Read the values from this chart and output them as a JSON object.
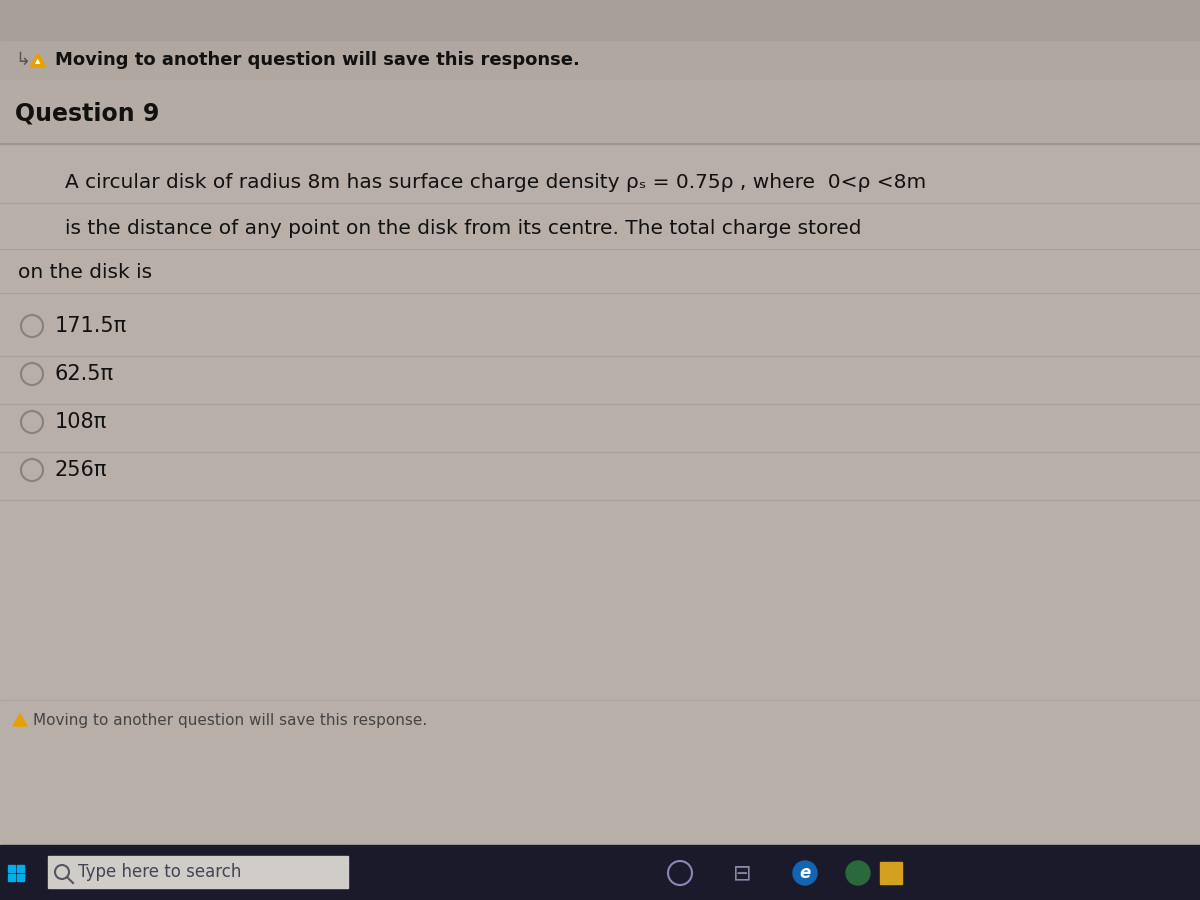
{
  "bg_color": "#b8b0a8",
  "top_area_color": "#b0a8a0",
  "body_color": "#b8b0a8",
  "taskbar_bg": "#1a1a2a",
  "taskbar_search_bg": "#d0ccc8",
  "header_text": "Moving to another question will save this response.",
  "question_label": "Question 9",
  "question_line1": "A circular disk of radius 8m has surface charge density ρₛ = 0.75ρ , where  0<ρ <8m",
  "question_line2": "is the distance of any point on the disk from its centre. The total charge stored",
  "question_line3": "on the disk is",
  "options": [
    "171.5π",
    "62.5π",
    "108π",
    "256π"
  ],
  "footer_text": "Moving to another question will save this response.",
  "taskbar_search": "Type here to search",
  "text_color": "#111111",
  "question_label_color": "#111111",
  "header_color": "#111111",
  "option_text_color": "#111111",
  "footer_text_color": "#444444",
  "taskbar_text_color": "#aaaacc",
  "divider_color": "#999090",
  "option_circle_color": "#888080",
  "warning_color": "#e8a000",
  "arrow_color": "#555555",
  "grid_color": "#a8a09898",
  "question_text_fontsize": 14.5,
  "option_fontsize": 15,
  "header_fontsize": 13,
  "question_label_fontsize": 17
}
